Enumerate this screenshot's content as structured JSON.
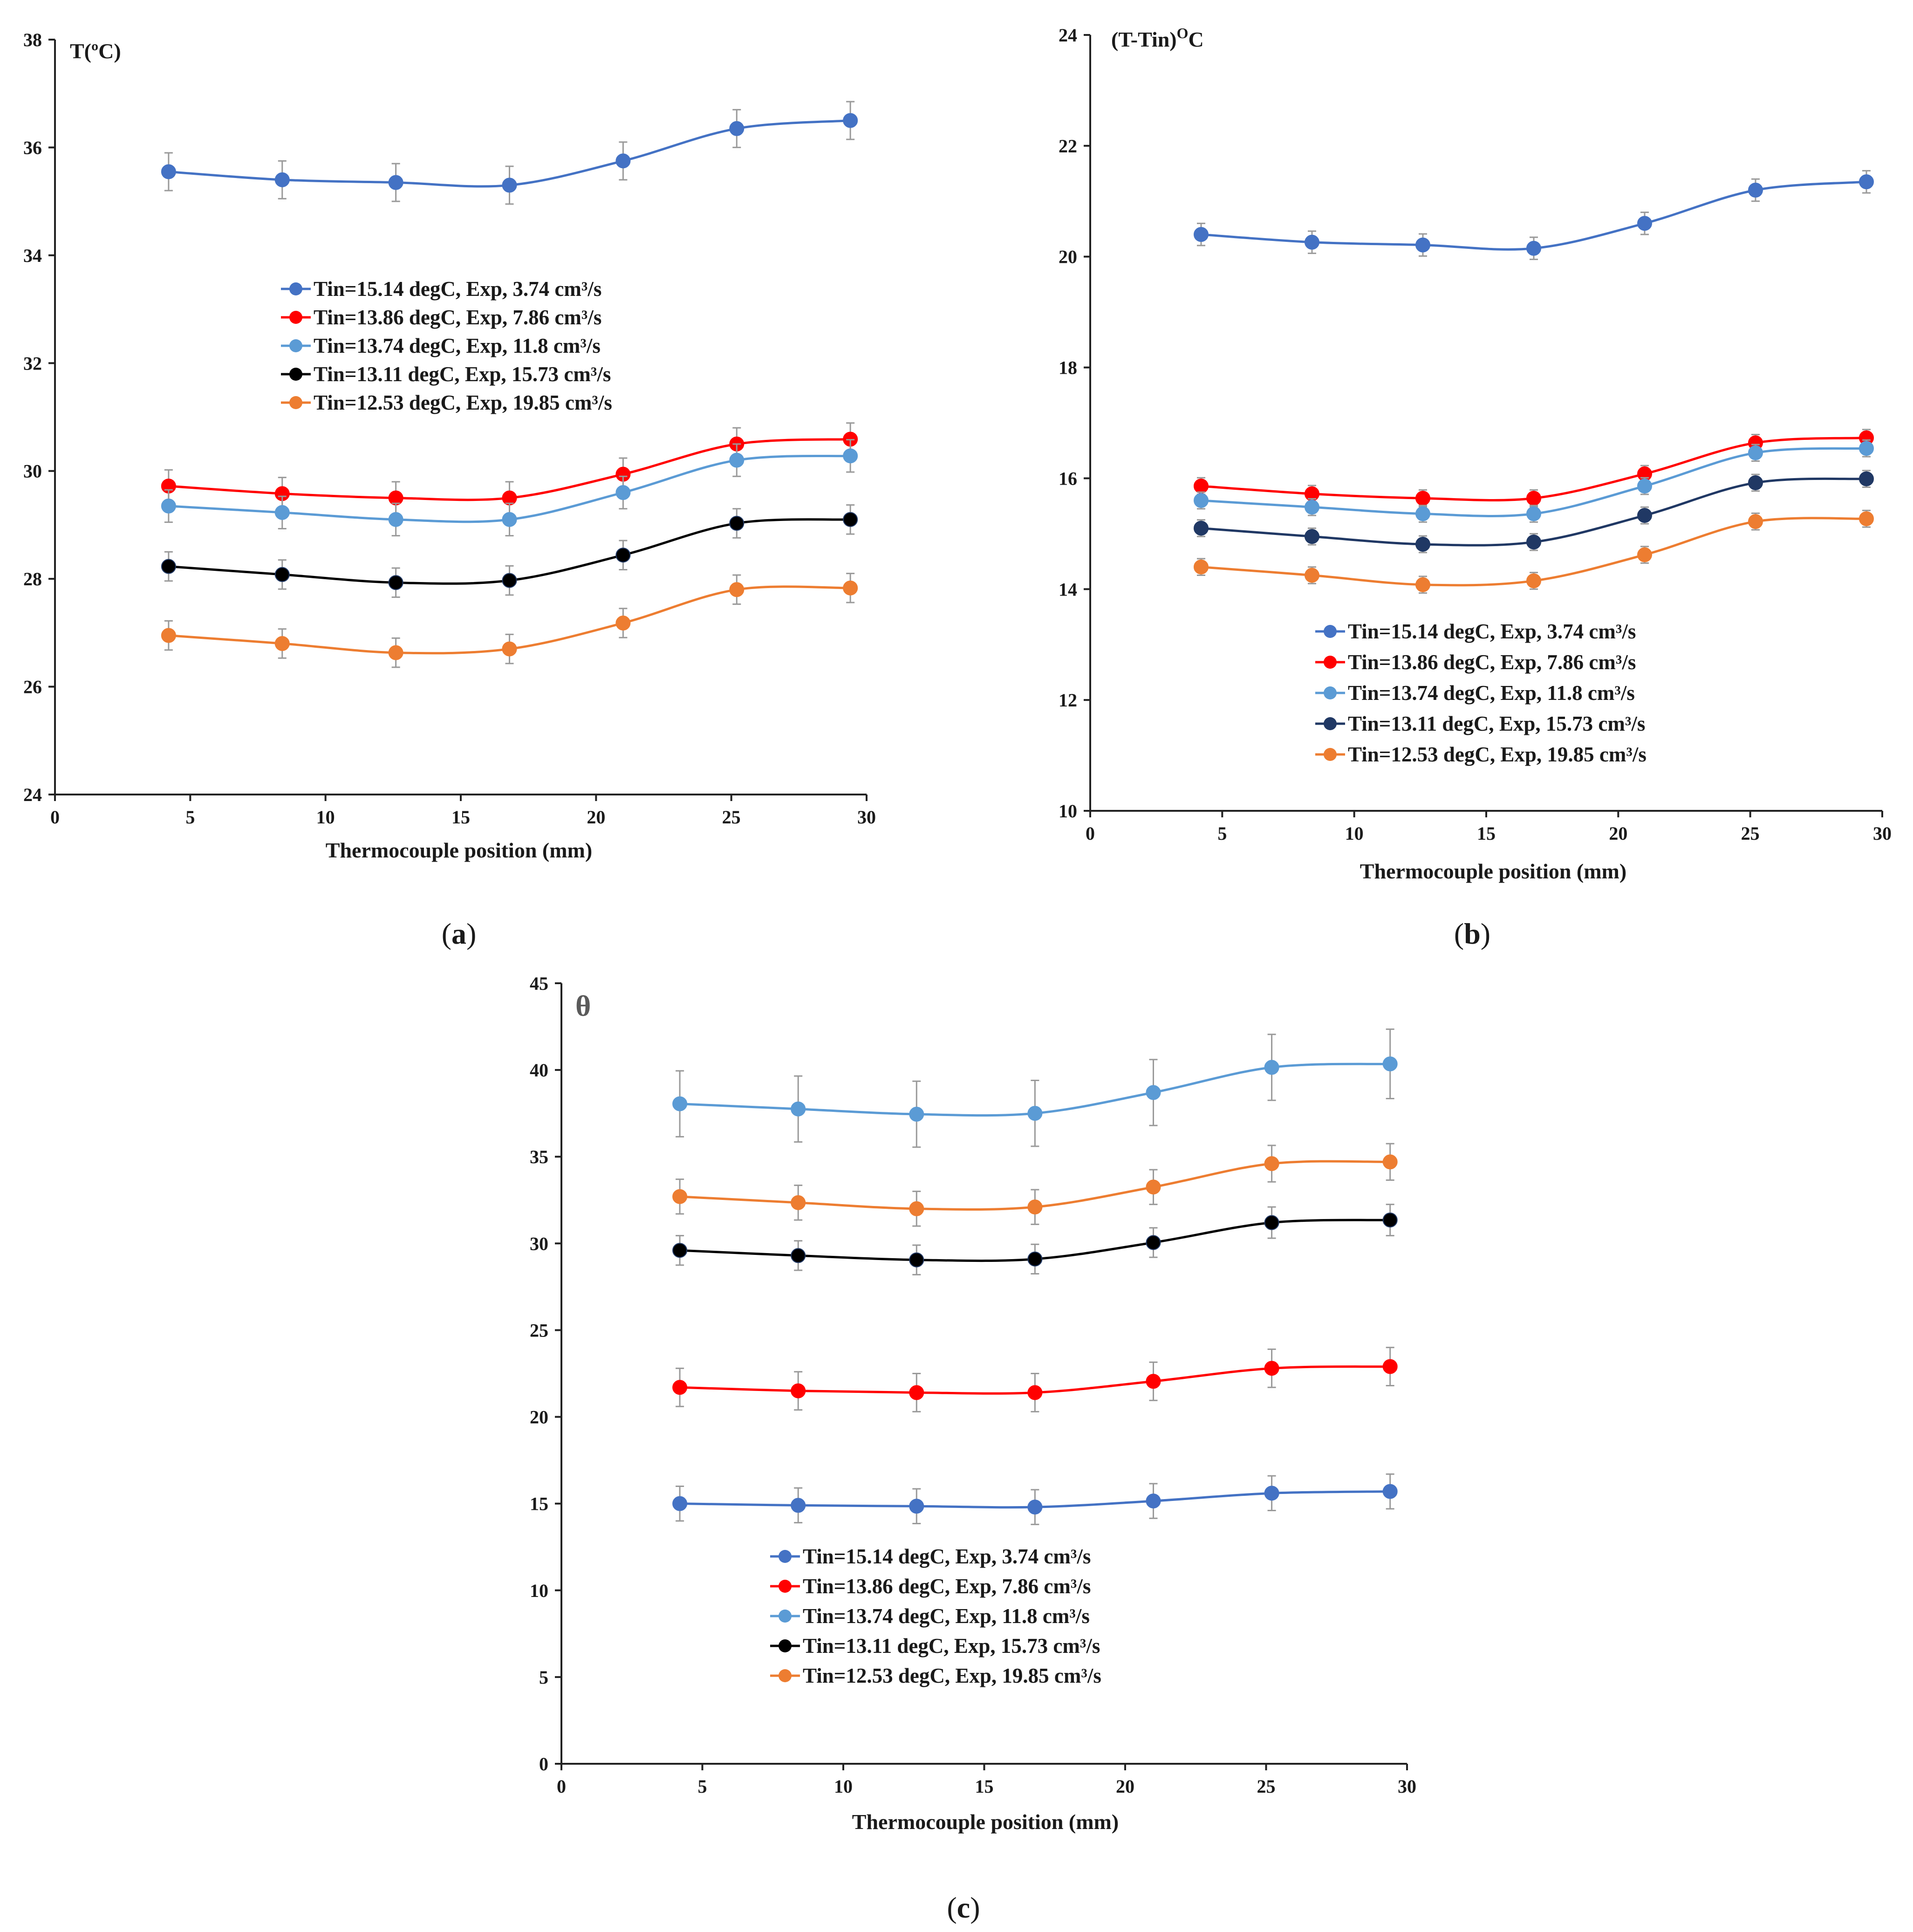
{
  "chart_data": [
    {
      "type": "line",
      "caption": "(a)",
      "caption_letter": "a",
      "title": "",
      "ylabel": "T(ºC)",
      "xlabel": "Thermocouple position (mm)",
      "xlim": [
        0,
        30
      ],
      "ylim": [
        24,
        38
      ],
      "xticks": [
        0,
        5,
        10,
        15,
        20,
        25,
        30
      ],
      "yticks": [
        24,
        26,
        28,
        30,
        32,
        34,
        36,
        38
      ],
      "grid": false,
      "legend_position": "center",
      "x": [
        4.2,
        8.4,
        12.6,
        16.8,
        21,
        25.2,
        29.4
      ],
      "series": [
        {
          "name": "Tin=15.14 degC, Exp, 3.74 cm³/s",
          "color": "#4472C4",
          "values": [
            35.55,
            35.4,
            35.35,
            35.3,
            35.75,
            36.35,
            36.5
          ],
          "error": [
            0.35,
            0.35,
            0.35,
            0.35,
            0.35,
            0.35,
            0.35
          ]
        },
        {
          "name": "Tin=13.86 degC, Exp, 7.86 cm³/s",
          "color": "#FF0000",
          "values": [
            29.72,
            29.58,
            29.5,
            29.5,
            29.94,
            30.5,
            30.59
          ],
          "error": [
            0.3,
            0.3,
            0.3,
            0.3,
            0.3,
            0.3,
            0.3
          ]
        },
        {
          "name": "Tin=13.74 degC, Exp, 11.8 cm³/s",
          "color": "#5B9BD5",
          "values": [
            29.35,
            29.23,
            29.1,
            29.1,
            29.6,
            30.2,
            30.28
          ],
          "error": [
            0.3,
            0.3,
            0.3,
            0.3,
            0.3,
            0.3,
            0.3
          ]
        },
        {
          "name": "Tin=13.11 degC, Exp, 15.73 cm³/s",
          "color": "#000000",
          "values": [
            28.23,
            28.08,
            27.93,
            27.97,
            28.44,
            29.03,
            29.1
          ],
          "error": [
            0.27,
            0.27,
            0.27,
            0.27,
            0.27,
            0.27,
            0.27
          ]
        },
        {
          "name": "Tin=12.53 degC, Exp, 19.85 cm³/s",
          "color": "#ED7D31",
          "values": [
            26.95,
            26.8,
            26.63,
            26.7,
            27.18,
            27.8,
            27.83
          ],
          "error": [
            0.27,
            0.27,
            0.27,
            0.27,
            0.27,
            0.27,
            0.27
          ]
        }
      ]
    },
    {
      "type": "line",
      "caption": "(b)",
      "caption_letter": "b",
      "title": "",
      "ylabel": "(T-Tin)OC",
      "ylabel_main": "(T-Tin)",
      "ylabel_sup": "O",
      "ylabel_tail": "C",
      "xlabel": "Thermocouple position (mm)",
      "xlim": [
        0,
        30
      ],
      "ylim": [
        10,
        24
      ],
      "xticks": [
        0,
        5,
        10,
        15,
        20,
        25,
        30
      ],
      "yticks": [
        10,
        12,
        14,
        16,
        18,
        20,
        22,
        24
      ],
      "grid": false,
      "legend_position": "bottom-right",
      "x": [
        4.2,
        8.4,
        12.6,
        16.8,
        21,
        25.2,
        29.4
      ],
      "series": [
        {
          "name": "Tin=15.14 degC, Exp, 3.74 cm³/s",
          "color": "#4472C4",
          "values": [
            20.4,
            20.26,
            20.21,
            20.15,
            20.6,
            21.2,
            21.35
          ],
          "error": [
            0.2,
            0.2,
            0.2,
            0.2,
            0.2,
            0.2,
            0.2
          ]
        },
        {
          "name": "Tin=13.86 degC, Exp, 7.86 cm³/s",
          "color": "#FF0000",
          "values": [
            15.86,
            15.72,
            15.64,
            15.64,
            16.08,
            16.64,
            16.73
          ],
          "error": [
            0.15,
            0.15,
            0.15,
            0.15,
            0.15,
            0.15,
            0.15
          ]
        },
        {
          "name": "Tin=13.74 degC, Exp, 11.8 cm³/s",
          "color": "#5B9BD5",
          "values": [
            15.6,
            15.48,
            15.36,
            15.36,
            15.86,
            16.46,
            16.54
          ],
          "error": [
            0.15,
            0.15,
            0.15,
            0.15,
            0.15,
            0.15,
            0.15
          ]
        },
        {
          "name": "Tin=13.11 degC, Exp, 15.73 cm³/s",
          "color": "#203864",
          "values": [
            15.1,
            14.95,
            14.81,
            14.85,
            15.33,
            15.92,
            15.99
          ],
          "error": [
            0.15,
            0.15,
            0.15,
            0.15,
            0.15,
            0.15,
            0.15
          ]
        },
        {
          "name": "Tin=12.53 degC, Exp, 19.85 cm³/s",
          "color": "#ED7D31",
          "values": [
            14.4,
            14.25,
            14.08,
            14.15,
            14.62,
            15.22,
            15.27
          ],
          "error": [
            0.15,
            0.15,
            0.15,
            0.15,
            0.15,
            0.15,
            0.15
          ]
        }
      ]
    },
    {
      "type": "line",
      "caption": "(c)",
      "caption_letter": "c",
      "title": "",
      "ylabel": "θ",
      "xlabel": "Thermocouple position (mm)",
      "xlim": [
        0,
        30
      ],
      "ylim": [
        0,
        45
      ],
      "xticks": [
        0,
        5,
        10,
        15,
        20,
        25,
        30
      ],
      "yticks": [
        0,
        5,
        10,
        15,
        20,
        25,
        30,
        35,
        40,
        45
      ],
      "grid": false,
      "legend_position": "bottom-left",
      "x": [
        4.2,
        8.4,
        12.6,
        16.8,
        21,
        25.2,
        29.4
      ],
      "series": [
        {
          "name": "Tin=15.14 degC, Exp, 3.74 cm³/s",
          "color": "#4472C4",
          "values": [
            15.0,
            14.9,
            14.85,
            14.8,
            15.15,
            15.6,
            15.7
          ],
          "error": [
            1.0,
            1.0,
            1.0,
            1.0,
            1.0,
            1.0,
            1.0
          ]
        },
        {
          "name": "Tin=13.86 degC, Exp, 7.86 cm³/s",
          "color": "#FF0000",
          "values": [
            21.7,
            21.5,
            21.4,
            21.4,
            22.05,
            22.8,
            22.9
          ],
          "error": [
            1.1,
            1.1,
            1.1,
            1.1,
            1.1,
            1.1,
            1.1
          ]
        },
        {
          "name": "Tin=13.74 degC, Exp, 11.8 cm³/s",
          "color": "#5B9BD5",
          "values": [
            38.05,
            37.75,
            37.45,
            37.5,
            38.7,
            40.15,
            40.35
          ],
          "error": [
            1.9,
            1.9,
            1.9,
            1.9,
            1.9,
            1.9,
            2.0
          ]
        },
        {
          "name": "Tin=13.11 degC, Exp, 15.73 cm³/s",
          "color": "#000000",
          "values": [
            29.6,
            29.3,
            29.05,
            29.1,
            30.05,
            31.2,
            31.35
          ],
          "error": [
            0.85,
            0.85,
            0.85,
            0.85,
            0.85,
            0.9,
            0.9
          ]
        },
        {
          "name": "Tin=12.53 degC, Exp, 19.85 cm³/s",
          "color": "#ED7D31",
          "values": [
            32.7,
            32.35,
            32.0,
            32.1,
            33.25,
            34.6,
            34.7
          ],
          "error": [
            1.0,
            1.0,
            1.0,
            1.0,
            1.0,
            1.05,
            1.05
          ]
        }
      ]
    }
  ]
}
